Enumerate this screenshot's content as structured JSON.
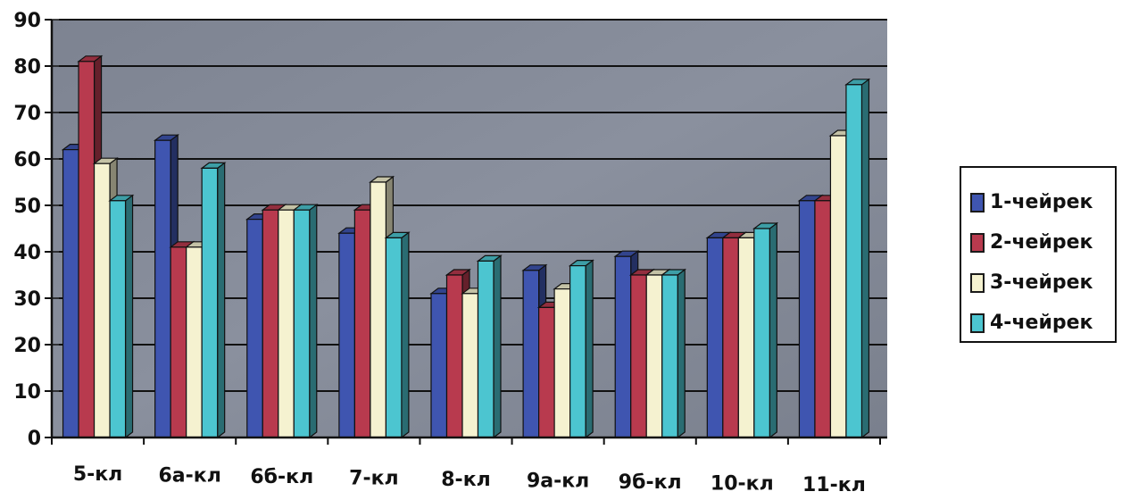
{
  "chart_data": {
    "type": "bar",
    "categories": [
      "5-кл",
      "6а-кл",
      "6б-кл",
      "7-кл",
      "8-кл",
      "9а-кл",
      "9б-кл",
      "10-кл",
      "11-кл"
    ],
    "series": [
      {
        "name": "1-чейрек",
        "color": "#3f55b0",
        "values": [
          62,
          64,
          47,
          44,
          31,
          36,
          39,
          43,
          51
        ]
      },
      {
        "name": "2-чейрек",
        "color": "#b83a4e",
        "values": [
          81,
          41,
          49,
          49,
          35,
          28,
          35,
          43,
          51
        ]
      },
      {
        "name": "3-чейрек",
        "color": "#f5f2d0",
        "values": [
          59,
          41,
          49,
          55,
          31,
          32,
          35,
          43,
          65
        ]
      },
      {
        "name": "4-чейрек",
        "color": "#4cc5d0",
        "values": [
          51,
          58,
          49,
          43,
          38,
          37,
          35,
          45,
          76
        ]
      }
    ],
    "ylim": [
      0,
      90
    ],
    "yticks": [
      0,
      10,
      20,
      30,
      40,
      50,
      60,
      70,
      80,
      90
    ],
    "grid": true,
    "legend_position": "right",
    "plot_background": "#8a909e"
  }
}
